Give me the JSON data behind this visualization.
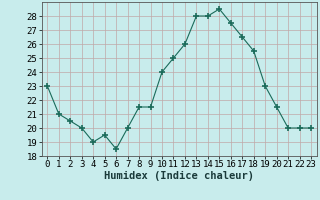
{
  "x": [
    0,
    1,
    2,
    3,
    4,
    5,
    6,
    7,
    8,
    9,
    10,
    11,
    12,
    13,
    14,
    15,
    16,
    17,
    18,
    19,
    20,
    21,
    22,
    23
  ],
  "y": [
    23,
    21,
    20.5,
    20,
    19,
    19.5,
    18.5,
    20,
    21.5,
    21.5,
    24,
    25,
    26,
    28,
    28,
    28.5,
    27.5,
    26.5,
    25.5,
    23,
    21.5,
    20,
    20,
    20
  ],
  "line_color": "#1a6b5a",
  "marker": "+",
  "marker_size": 4,
  "marker_lw": 1.2,
  "bg_color": "#c8ecec",
  "grid_color": "#c0a8a8",
  "xlabel": "Humidex (Indice chaleur)",
  "xlabel_fontsize": 7.5,
  "tick_fontsize": 6.5,
  "ylim": [
    18,
    29
  ],
  "yticks": [
    18,
    19,
    20,
    21,
    22,
    23,
    24,
    25,
    26,
    27,
    28
  ],
  "xlim": [
    -0.5,
    23.5
  ],
  "xticks": [
    0,
    1,
    2,
    3,
    4,
    5,
    6,
    7,
    8,
    9,
    10,
    11,
    12,
    13,
    14,
    15,
    16,
    17,
    18,
    19,
    20,
    21,
    22,
    23
  ]
}
